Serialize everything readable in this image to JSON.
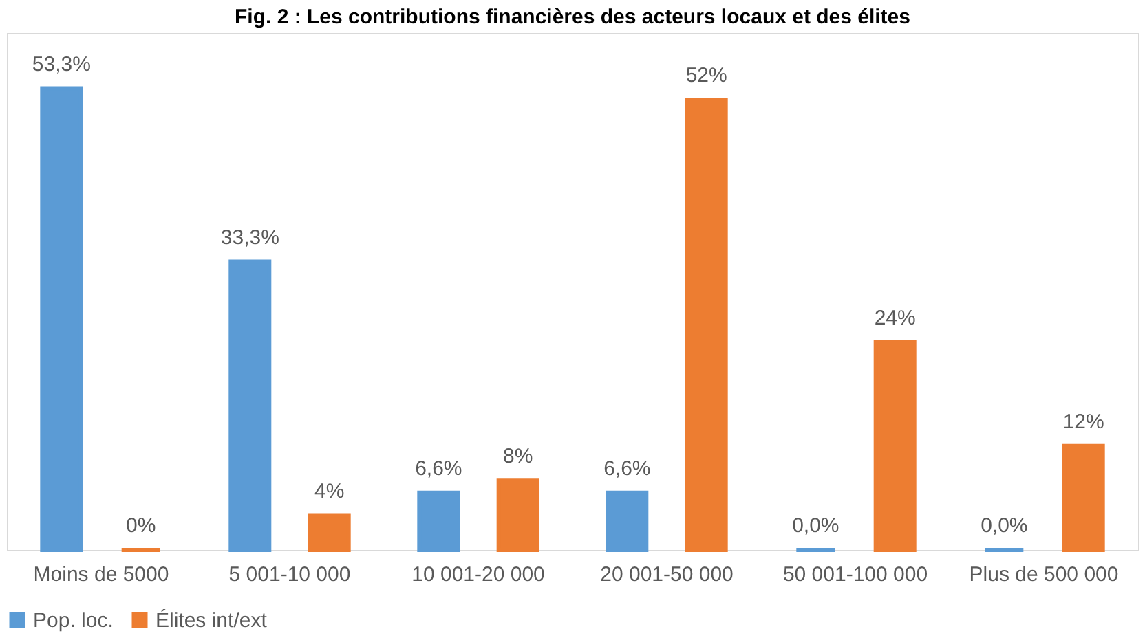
{
  "chart_data": {
    "type": "bar",
    "title": "Fig. 2 : Les contributions financières des acteurs locaux et des élites",
    "categories": [
      "Moins de 5000",
      "5 001-10 000",
      "10 001-20 000",
      "20 001-50 000",
      "50 001-100 000",
      "Plus de 500 000"
    ],
    "series": [
      {
        "name": "Pop. loc.",
        "color": "#5b9bd5",
        "values": [
          53.3,
          33.3,
          6.6,
          6.6,
          0.0,
          0.0
        ],
        "value_labels": [
          "53,3%",
          "33,3%",
          "6,6%",
          "6,6%",
          "0,0%",
          "0,0%"
        ]
      },
      {
        "name": "Élites int/ext",
        "color": "#ed7d31",
        "values": [
          0,
          4,
          8,
          52,
          24,
          12
        ],
        "value_labels": [
          "0%",
          "4%",
          "8%",
          "52%",
          "24%",
          "12%"
        ]
      }
    ],
    "legend": "bottom",
    "grid": false
  }
}
